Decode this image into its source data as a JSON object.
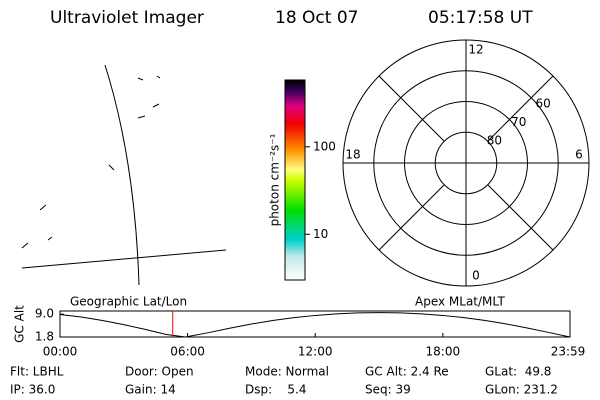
{
  "header": {
    "instrument": "Ultraviolet Imager",
    "date": "18 Oct 07",
    "time": "05:17:58 UT"
  },
  "chart_data": [
    {
      "type": "colorbar",
      "label": "photon cm⁻²s⁻¹",
      "log_scale": true,
      "ylim": [
        3,
        580
      ],
      "yticks": [
        10,
        100
      ]
    },
    {
      "type": "polar",
      "rlim": [
        90,
        50
      ],
      "rticks": [
        60,
        70,
        80
      ],
      "angle_ticks": [
        0,
        6,
        12,
        18
      ]
    },
    {
      "type": "line",
      "ylabel": "GC Alt",
      "annotations": [
        "Geographic Lat/Lon",
        "Apex MLat/MLT"
      ],
      "x": [
        0,
        1,
        2,
        3,
        4,
        5,
        5.9,
        7,
        8,
        9,
        10,
        11,
        12,
        13,
        14,
        15,
        16,
        17,
        18,
        19,
        20,
        21,
        22,
        23,
        23.98
      ],
      "series": [
        {
          "color": "#000000",
          "values": [
            8.9,
            8.1,
            7.0,
            5.7,
            4.2,
            2.6,
            1.8,
            3.2,
            4.6,
            5.9,
            7.0,
            7.9,
            8.6,
            9.1,
            9.4,
            9.5,
            9.4,
            9.1,
            8.6,
            7.9,
            7.0,
            5.9,
            4.6,
            3.2,
            1.8
          ]
        }
      ],
      "xlim": [
        0,
        23.98
      ],
      "xticks": [
        {
          "value": 0,
          "label": "00:00"
        },
        {
          "value": 6,
          "label": "06:00"
        },
        {
          "value": 12,
          "label": "12:00"
        },
        {
          "value": 18,
          "label": "18:00"
        },
        {
          "value": 23.98,
          "label": "23:59"
        }
      ],
      "ylim": [
        1.8,
        10
      ],
      "yticks": [
        {
          "value": 9,
          "label": "9.0"
        },
        {
          "value": 1.8,
          "label": "1.8"
        }
      ],
      "marker": {
        "x": 5.3,
        "color": "#ff0000"
      }
    }
  ],
  "status": {
    "rows": [
      [
        "Flt: LBHL",
        "Door: Open",
        "Mode: Normal",
        "GC Alt: 2.4 Re",
        "GLat:  49.8"
      ],
      [
        "IP: 36.0",
        "Gain: 14",
        "Dsp:    5.4",
        "Seq: 39",
        "GLon: 231.2"
      ]
    ]
  }
}
